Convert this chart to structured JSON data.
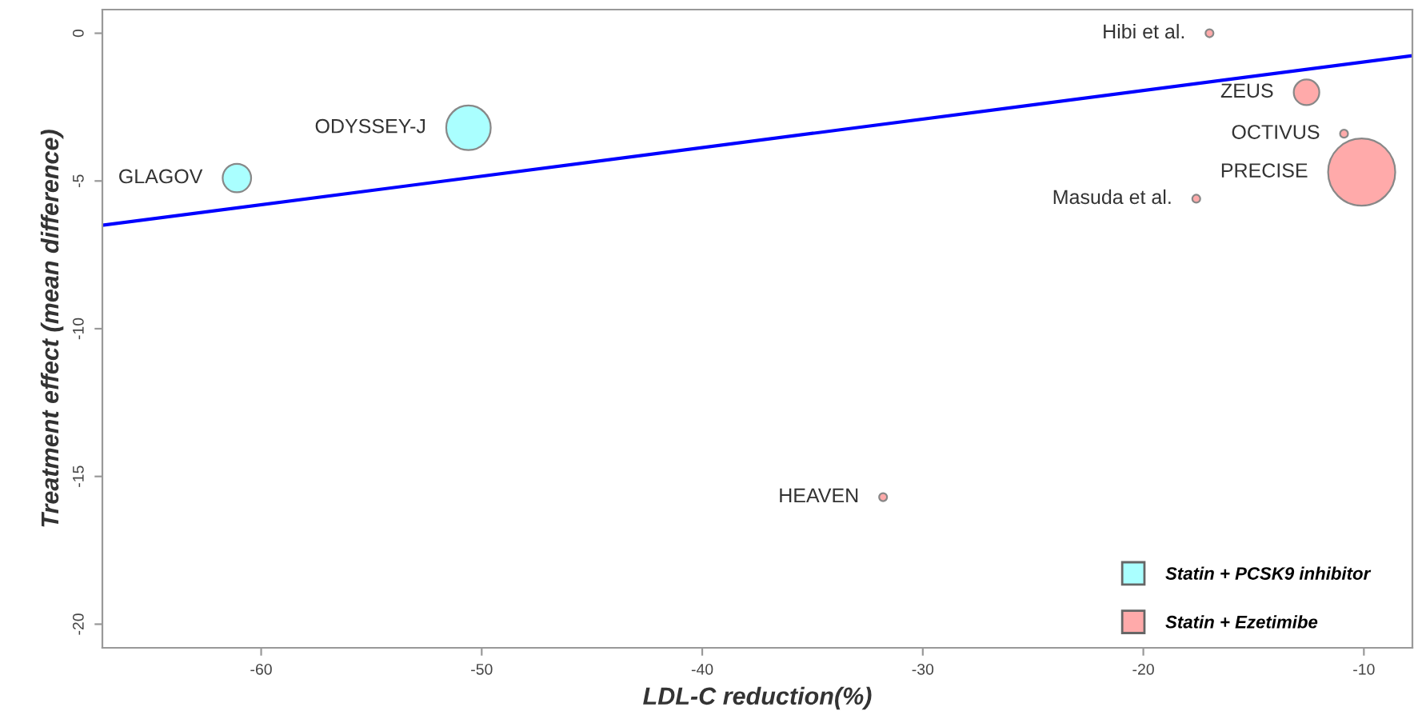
{
  "chart_data": {
    "type": "bubble",
    "xlabel": "LDL-C reduction(%)",
    "ylabel": "Treatment effect (mean difference)",
    "xlim": [
      -67.2,
      -7.8
    ],
    "ylim": [
      -20.8,
      0.8
    ],
    "xticks": [
      -60,
      -50,
      -40,
      -30,
      -20,
      -10
    ],
    "yticks": [
      0,
      -5,
      -10,
      -15,
      -20
    ],
    "grid": false,
    "legend": "bottom right",
    "marker": "circle",
    "series": [
      {
        "name": "Statin + PCSK9 inhibitor",
        "color": "#aaffff",
        "x": [
          -61.1,
          -50.6
        ],
        "values": [
          -4.9,
          -3.2
        ],
        "sizes": [
          0.18,
          0.44
        ]
      },
      {
        "name": "Statin + Ezetimibe",
        "color": "#ffaaaa",
        "x": [
          -17.0,
          -12.6,
          -10.9,
          -10.1,
          -17.6,
          -31.8
        ],
        "values": [
          0.0,
          -2.0,
          -3.4,
          -4.7,
          -5.6,
          -15.7
        ],
        "sizes": [
          0.014,
          0.145,
          0.014,
          1,
          0.014,
          0.014
        ]
      },
      {
        "type": "line",
        "marker": "none",
        "color": "#0000ff",
        "x": [
          -67.2,
          -7.8
        ],
        "values": [
          -6.5,
          -0.76
        ]
      }
    ],
    "annotations": [
      {
        "text": "GLAGOV",
        "x": -61.1,
        "y": -4.9
      },
      {
        "text": "ODYSSEY-J",
        "x": -50.6,
        "y": -3.2
      },
      {
        "text": "Hibi et al.",
        "x": -17.0,
        "y": 0.0
      },
      {
        "text": "ZEUS",
        "x": -12.6,
        "y": -2.0
      },
      {
        "text": "OCTIVUS",
        "x": -10.9,
        "y": -3.4
      },
      {
        "text": "PRECISE",
        "x": -10.1,
        "y": -4.7
      },
      {
        "text": "Masuda et al.",
        "x": -17.6,
        "y": -5.6
      },
      {
        "text": "HEAVEN",
        "x": -31.8,
        "y": -15.7
      }
    ]
  }
}
